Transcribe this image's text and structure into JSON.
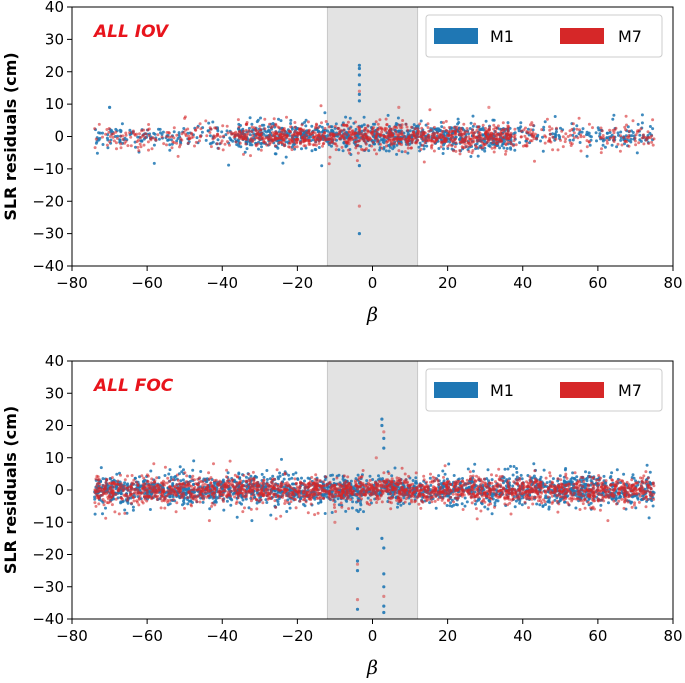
{
  "chart_data": [
    {
      "type": "scatter",
      "annotation": "ALL IOV",
      "annotation_color": "#e8141c",
      "xlabel": "β",
      "ylabel": "SLR residuals (cm)",
      "xlim": [
        -80,
        80
      ],
      "ylim": [
        -40,
        40
      ],
      "xticks": [
        "−80",
        "−60",
        "−40",
        "−20",
        "0",
        "20",
        "40",
        "60",
        "80"
      ],
      "yticks": [
        "40",
        "30",
        "20",
        "10",
        "0",
        "−10",
        "−20",
        "−30",
        "−40"
      ],
      "shaded_region": [
        -12,
        12
      ],
      "legend_position": "top-right",
      "series": [
        {
          "name": "M1",
          "color": "#1f77b4",
          "bands": [
            {
              "x": [
                -74,
                -36
              ],
              "spread": 2.2,
              "density": 4
            },
            {
              "x": [
                -36,
                37
              ],
              "spread": 2.6,
              "density": 12
            },
            {
              "x": [
                37,
                75
              ],
              "spread": 2.4,
              "density": 4
            }
          ],
          "outliers": [
            [
              -3.5,
              22
            ],
            [
              -3.5,
              21
            ],
            [
              -3.5,
              19
            ],
            [
              -3.5,
              16
            ],
            [
              -3.5,
              13
            ],
            [
              -3.5,
              11
            ],
            [
              -3.5,
              -9
            ],
            [
              -3.5,
              -30
            ],
            [
              -70,
              9
            ]
          ]
        },
        {
          "name": "M7",
          "color": "#d62728",
          "bands": [
            {
              "x": [
                -74,
                -36
              ],
              "spread": 2.2,
              "density": 4
            },
            {
              "x": [
                -36,
                37
              ],
              "spread": 2.4,
              "density": 12
            },
            {
              "x": [
                37,
                75
              ],
              "spread": 2.4,
              "density": 4
            }
          ],
          "outliers": [
            [
              -3.5,
              14
            ],
            [
              -3.5,
              -21.5
            ],
            [
              7,
              9
            ],
            [
              31,
              9
            ]
          ]
        }
      ]
    },
    {
      "type": "scatter",
      "annotation": "ALL FOC",
      "annotation_color": "#e8141c",
      "xlabel": "β",
      "ylabel": "SLR residuals (cm)",
      "xlim": [
        -80,
        80
      ],
      "ylim": [
        -40,
        40
      ],
      "xticks": [
        "−80",
        "−60",
        "−40",
        "−20",
        "0",
        "20",
        "40",
        "60",
        "80"
      ],
      "yticks": [
        "40",
        "30",
        "20",
        "10",
        "0",
        "−10",
        "−20",
        "−30",
        "−40"
      ],
      "shaded_region": [
        -12,
        12
      ],
      "legend_position": "top-right",
      "series": [
        {
          "name": "M1",
          "color": "#1f77b4",
          "bands": [
            {
              "x": [
                -74,
                75
              ],
              "spread": 2.8,
              "density": 14
            }
          ],
          "outliers": [
            [
              2.5,
              22
            ],
            [
              2.5,
              20
            ],
            [
              3,
              16
            ],
            [
              3,
              13
            ],
            [
              2.5,
              -15
            ],
            [
              3,
              -18
            ],
            [
              3,
              -26
            ],
            [
              3,
              -30
            ],
            [
              3,
              -36
            ],
            [
              3,
              -38
            ],
            [
              -4,
              -22
            ],
            [
              -4,
              -25
            ],
            [
              -4,
              -37
            ],
            [
              -4,
              -12
            ]
          ]
        },
        {
          "name": "M7",
          "color": "#d62728",
          "bands": [
            {
              "x": [
                -74,
                75
              ],
              "spread": 2.6,
              "density": 14
            }
          ],
          "outliers": [
            [
              -4,
              -23
            ],
            [
              -4,
              -34
            ],
            [
              3,
              -33
            ],
            [
              3,
              18
            ],
            [
              1,
              10
            ],
            [
              -10,
              -10
            ]
          ]
        }
      ]
    }
  ]
}
